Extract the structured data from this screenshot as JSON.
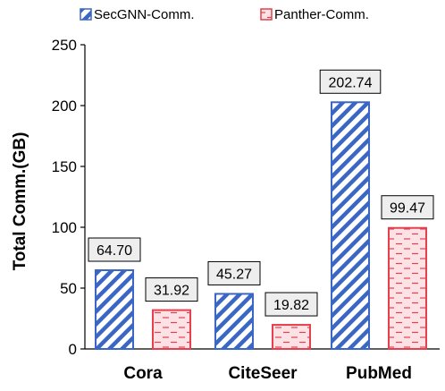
{
  "chart_data": {
    "type": "bar",
    "title": "",
    "xlabel": "",
    "ylabel": "Total Comm.(GB)",
    "ylim": [
      0,
      250
    ],
    "yticks": [
      0,
      50,
      100,
      150,
      200,
      250
    ],
    "grid": false,
    "legend_position": "top",
    "categories": [
      "Cora",
      "CiteSeer",
      "PubMed"
    ],
    "series": [
      {
        "name": "SecGNN-Comm.",
        "values": [
          64.7,
          45.27,
          202.74
        ],
        "labels": [
          "64.70",
          "45.27",
          "202.74"
        ],
        "pattern": "diagonal-hatch",
        "stroke": "#3a66c4",
        "hatch": "#3a66c4",
        "fill": "#ffffff"
      },
      {
        "name": "Panther-Comm.",
        "values": [
          31.92,
          19.82,
          99.47
        ],
        "labels": [
          "31.92",
          "19.82",
          "99.47"
        ],
        "pattern": "dashed-horizontal",
        "stroke": "#e4404f",
        "hatch": "#e4404f",
        "fill": "#fde2e5"
      }
    ],
    "label_box_fill": "#eeeeee"
  }
}
